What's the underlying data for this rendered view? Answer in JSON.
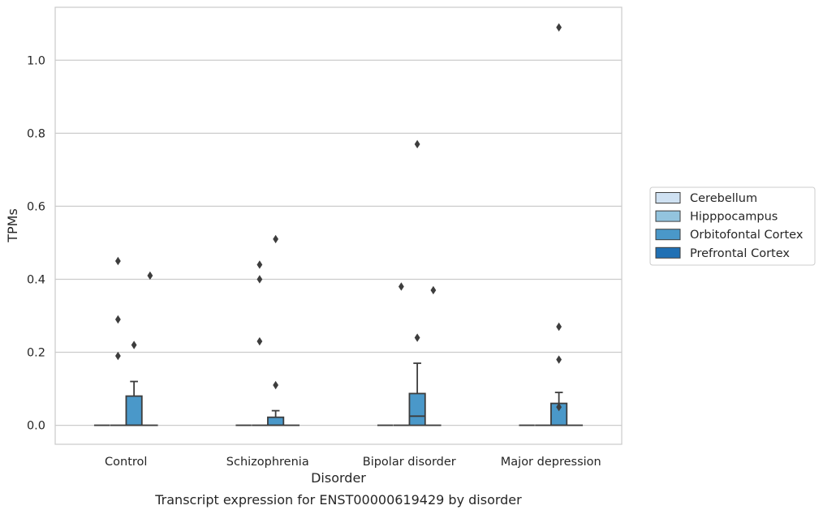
{
  "chart_data": {
    "type": "box",
    "caption": "Transcript expression for ENST00000619429 by disorder",
    "xlabel": "Disorder",
    "ylabel": "TPMs",
    "ylim": [
      -0.052,
      1.145
    ],
    "yticks": [
      0.0,
      0.2,
      0.4,
      0.6,
      0.8,
      1.0
    ],
    "ytick_labels": [
      "0.0",
      "0.2",
      "0.4",
      "0.6",
      "0.8",
      "1.0"
    ],
    "grid": "horizontal",
    "legend_position": "right",
    "categories": [
      "Control",
      "Schizophrenia",
      "Bipolar disorder",
      "Major depression"
    ],
    "series": [
      {
        "name": "Cerebellum",
        "color": "#cfe1f2",
        "boxes": [
          {
            "q1": 0,
            "median": 0,
            "q3": 0,
            "whisker_low": 0,
            "whisker_high": 0,
            "outliers": []
          },
          {
            "q1": 0,
            "median": 0,
            "q3": 0,
            "whisker_low": 0,
            "whisker_high": 0,
            "outliers": []
          },
          {
            "q1": 0,
            "median": 0,
            "q3": 0,
            "whisker_low": 0,
            "whisker_high": 0,
            "outliers": []
          },
          {
            "q1": 0,
            "median": 0,
            "q3": 0,
            "whisker_low": 0,
            "whisker_high": 0,
            "outliers": []
          }
        ]
      },
      {
        "name": "Hipppocampus",
        "color": "#93c4de",
        "boxes": [
          {
            "q1": 0,
            "median": 0,
            "q3": 0,
            "whisker_low": 0,
            "whisker_high": 0,
            "outliers": [
              0.45,
              0.29,
              0.19
            ]
          },
          {
            "q1": 0,
            "median": 0,
            "q3": 0,
            "whisker_low": 0,
            "whisker_high": 0,
            "outliers": [
              0.44,
              0.4,
              0.23
            ]
          },
          {
            "q1": 0,
            "median": 0,
            "q3": 0,
            "whisker_low": 0,
            "whisker_high": 0,
            "outliers": [
              0.38
            ]
          },
          {
            "q1": 0,
            "median": 0,
            "q3": 0,
            "whisker_low": 0,
            "whisker_high": 0,
            "outliers": []
          }
        ]
      },
      {
        "name": "Orbitofontal Cortex",
        "color": "#4a98c9",
        "boxes": [
          {
            "q1": 0,
            "median": 0,
            "q3": 0.08,
            "whisker_low": 0,
            "whisker_high": 0.12,
            "outliers": [
              0.22
            ]
          },
          {
            "q1": 0,
            "median": 0,
            "q3": 0.022,
            "whisker_low": 0,
            "whisker_high": 0.04,
            "outliers": [
              0.51,
              0.11
            ]
          },
          {
            "q1": 0,
            "median": 0.025,
            "q3": 0.087,
            "whisker_low": 0,
            "whisker_high": 0.17,
            "outliers": [
              0.77,
              0.24
            ]
          },
          {
            "q1": 0,
            "median": 0,
            "q3": 0.06,
            "whisker_low": 0,
            "whisker_high": 0.09,
            "outliers": [
              1.09,
              0.27,
              0.18,
              0.05
            ]
          }
        ]
      },
      {
        "name": "Prefrontal Cortex",
        "color": "#2070b4",
        "boxes": [
          {
            "q1": 0,
            "median": 0,
            "q3": 0,
            "whisker_low": 0,
            "whisker_high": 0,
            "outliers": [
              0.41
            ]
          },
          {
            "q1": 0,
            "median": 0,
            "q3": 0,
            "whisker_low": 0,
            "whisker_high": 0,
            "outliers": []
          },
          {
            "q1": 0,
            "median": 0,
            "q3": 0,
            "whisker_low": 0,
            "whisker_high": 0,
            "outliers": [
              0.37
            ]
          },
          {
            "q1": 0,
            "median": 0,
            "q3": 0,
            "whisker_low": 0,
            "whisker_high": 0,
            "outliers": []
          }
        ]
      }
    ]
  }
}
